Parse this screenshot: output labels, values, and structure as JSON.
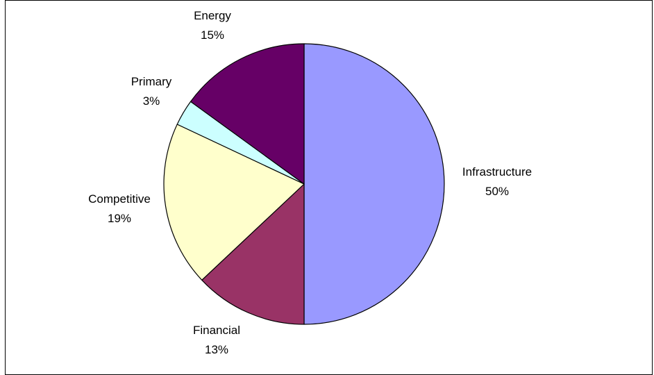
{
  "chart_data": {
    "type": "pie",
    "title": "",
    "slices": [
      {
        "label": "Infrastructure",
        "value": 50,
        "value_label": "50%",
        "color": "#9999FF"
      },
      {
        "label": "Financial",
        "value": 13,
        "value_label": "13%",
        "color": "#993366"
      },
      {
        "label": "Competitive",
        "value": 19,
        "value_label": "19%",
        "color": "#FFFFCC"
      },
      {
        "label": "Primary",
        "value": 3,
        "value_label": "3%",
        "color": "#CCFFFF"
      },
      {
        "label": "Energy",
        "value": 15,
        "value_label": "15%",
        "color": "#660066"
      }
    ],
    "start_angle": "12 o'clock",
    "direction": "clockwise",
    "legend": "none",
    "slice_border_color": "#000000"
  }
}
